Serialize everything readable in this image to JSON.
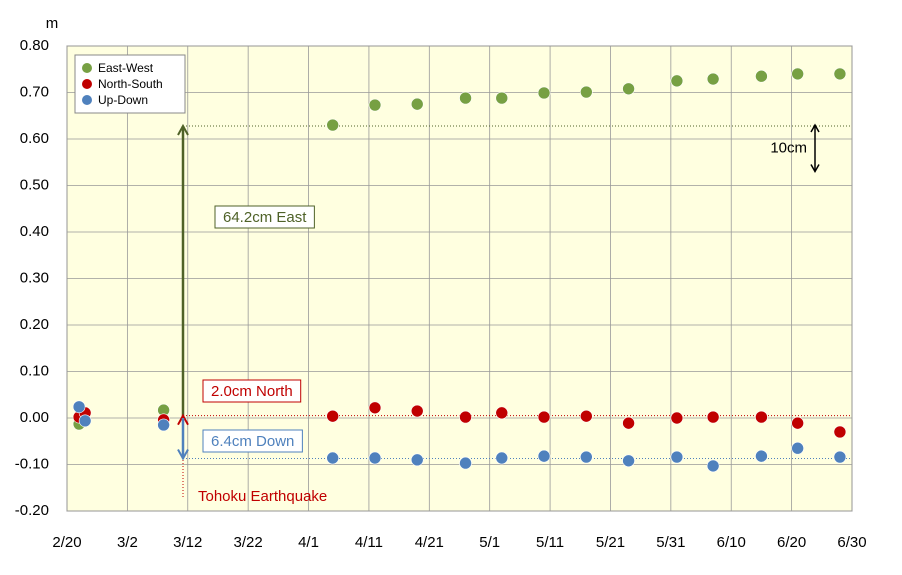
{
  "chart_data": {
    "type": "scatter",
    "y_unit": "m",
    "x": [
      "2/22",
      "2/23",
      "3/8",
      "4/5",
      "4/12",
      "4/19",
      "4/27",
      "5/3",
      "5/10",
      "5/17",
      "5/24",
      "6/1",
      "6/7",
      "6/15",
      "6/21",
      "6/28"
    ],
    "series": [
      {
        "name": "East-West",
        "color": "#77a043",
        "values": [
          -0.013,
          null,
          0.017,
          0.63,
          0.673,
          0.675,
          0.688,
          0.688,
          0.699,
          0.701,
          0.708,
          0.725,
          0.729,
          0.735,
          0.74,
          0.74
        ]
      },
      {
        "name": "North-South",
        "color": "#c00000",
        "values": [
          0.002,
          0.011,
          -0.004,
          0.004,
          0.022,
          0.015,
          0.002,
          0.011,
          0.002,
          0.004,
          -0.011,
          0.0,
          0.002,
          0.002,
          -0.011,
          -0.03
        ]
      },
      {
        "name": "Up-Down",
        "color": "#4f81bd",
        "values": [
          0.024,
          -0.006,
          -0.015,
          -0.086,
          -0.086,
          -0.09,
          -0.097,
          -0.086,
          -0.082,
          -0.084,
          -0.092,
          -0.084,
          -0.103,
          -0.082,
          -0.065,
          -0.084
        ]
      }
    ],
    "xlim": [
      "2/20",
      "6/30"
    ],
    "xticks": [
      "2/20",
      "3/2",
      "3/12",
      "3/22",
      "4/1",
      "4/11",
      "4/21",
      "5/1",
      "5/11",
      "5/21",
      "5/31",
      "6/10",
      "6/20",
      "6/30"
    ],
    "ylim": [
      -0.2,
      0.8
    ],
    "yticks": [
      {
        "value": 0.8,
        "label": "0.80"
      },
      {
        "value": 0.7,
        "label": "0.70"
      },
      {
        "value": 0.6,
        "label": "0.60"
      },
      {
        "value": 0.5,
        "label": "0.50"
      },
      {
        "value": 0.4,
        "label": "0.40"
      },
      {
        "value": 0.3,
        "label": "0.30"
      },
      {
        "value": 0.2,
        "label": "0.20"
      },
      {
        "value": 0.1,
        "label": "0.10"
      },
      {
        "value": 0,
        "label": "0.00"
      },
      {
        "value": -0.1,
        "label": "-0.10"
      },
      {
        "value": -0.2,
        "label": "-0.20"
      }
    ],
    "grid": true,
    "legend": "top-left",
    "reference_lines": [
      {
        "value": 0.628,
        "label": "64.2cm East",
        "color": "#4f6228"
      },
      {
        "value": 0.005,
        "label": "2.0cm North",
        "color": "#c00000"
      },
      {
        "value": -0.087,
        "label": "6.4cm Down",
        "color": "#4f81bd"
      }
    ],
    "annotations": {
      "scale": "10cm",
      "event": "Tohoku Earthquake"
    }
  }
}
